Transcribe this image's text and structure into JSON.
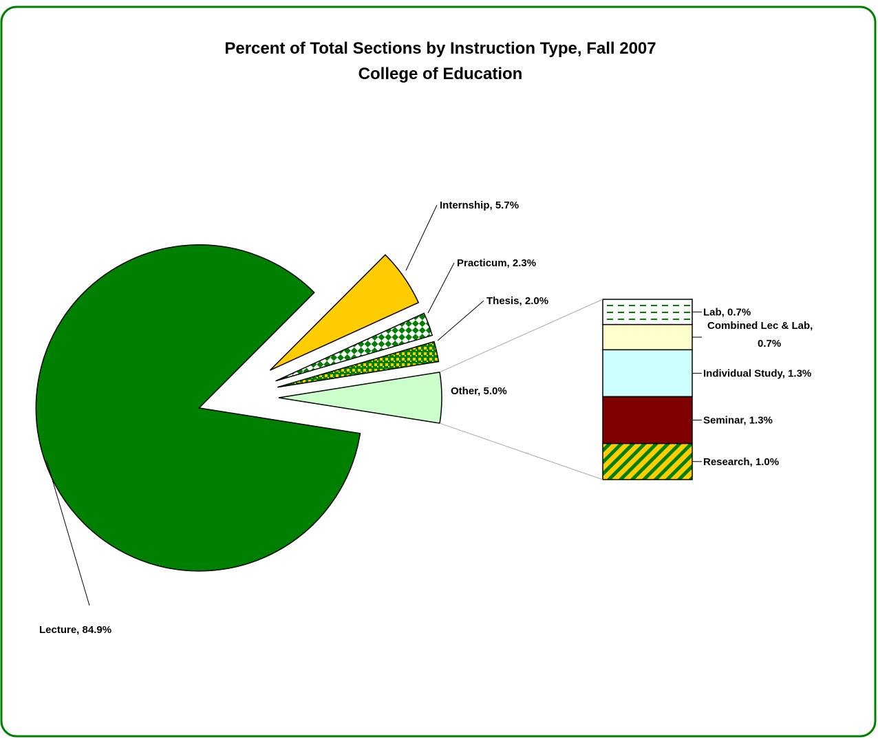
{
  "chart_data": {
    "type": "bar-of-pie",
    "title": "Percent of Total Sections by Instruction Type, Fall 2007",
    "subtitle": "College of Education",
    "values": [
      84.9,
      5.7,
      2.3,
      2.0,
      5.0
    ],
    "value_labels": [
      "Lecture, 84.9%",
      "Internship, 5.7%",
      "Practicum, 2.3%",
      "Thesis, 2.0%",
      "Other, 5.0%"
    ],
    "colors": [
      "#008000",
      "#ffcc00",
      "#008000",
      "#008000",
      "#ccffcc"
    ],
    "patterns": [
      null,
      null,
      "checker",
      "plaid",
      null
    ],
    "pattern_colors": [
      null,
      null,
      "#ffffff",
      "#ffcc00",
      null
    ],
    "breakdown": {
      "values": [
        0.7,
        0.7,
        1.3,
        1.3,
        1.0
      ],
      "value_labels": [
        "Lab, 0.7%",
        "Combined Lec & Lab, 0.7%",
        "Individual Study, 1.3%",
        "Seminar, 1.3%",
        "Research, 1.0%"
      ],
      "colors": [
        "#008000",
        "#ffffcc",
        "#ccffff",
        "#800000",
        "#008000"
      ],
      "patterns": [
        "dashes",
        null,
        null,
        null,
        "diagonal"
      ],
      "pattern_colors": [
        "#ffffff",
        null,
        null,
        null,
        "#ffcc00"
      ]
    }
  }
}
